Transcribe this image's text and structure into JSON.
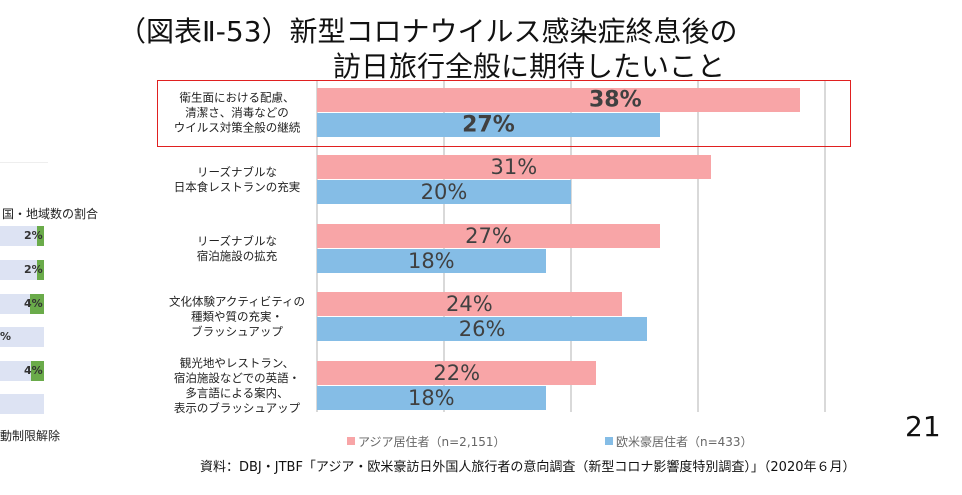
{
  "title": {
    "line1": "（図表Ⅱ-53）新型コロナウイルス感染症終息後の",
    "line2": "訪日旅行全般に期待したいこと"
  },
  "chart_data": {
    "type": "bar",
    "orientation": "horizontal",
    "categories": [
      "衛生面における配慮、\n清潔さ、消毒などの\nウイルス対策全般の継続",
      "リーズナブルな\n日本食レストランの充実",
      "リーズナブルな\n宿泊施設の拡充",
      "文化体験アクティビティの\n種類や質の充実・\nブラッシュアップ",
      "観光地やレストラン、\n宿泊施設などでの英語・\n多言語による案内、\n表示のブラッシュアップ"
    ],
    "series": [
      {
        "name": "アジア居住者（n=2,151）",
        "values": [
          38,
          31,
          27,
          24,
          22
        ],
        "labels": [
          "38%",
          "31%",
          "27%",
          "24%",
          "22%"
        ],
        "color": "#f8a5a7"
      },
      {
        "name": "欧米豪居住者（n=433）",
        "values": [
          27,
          20,
          18,
          26,
          18
        ],
        "labels": [
          "27%",
          "20%",
          "18%",
          "26%",
          "18%"
        ],
        "color": "#85bde6"
      }
    ],
    "xlim": [
      0,
      40
    ],
    "grid_step": 10,
    "grid": true,
    "legend": "bottom",
    "highlight": {
      "category_index": 0,
      "color": "#e02020"
    }
  },
  "left_panel": {
    "title": "国・地域数の割合",
    "labels": [
      "2%",
      "2%",
      "4%",
      "%",
      "4%",
      ""
    ],
    "green_fractions": [
      0.3,
      0.3,
      0.65,
      0,
      0.6,
      0
    ],
    "footer": "動制限解除"
  },
  "page_number": "21",
  "source": "資料：DBJ・JTBF「アジア・欧米豪訪日外国人旅行者の意向調査（新型コロナ影響度特別調査）」（2020年６月）"
}
